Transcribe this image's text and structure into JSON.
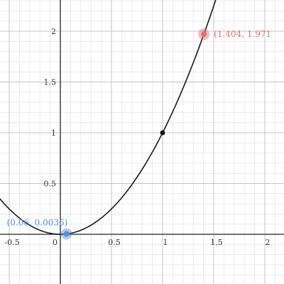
{
  "chart_data": {
    "type": "line",
    "title": "",
    "xlabel": "",
    "ylabel": "",
    "xlim": [
      -0.6,
      2.19
    ],
    "ylim": [
      -0.5,
      2.3
    ],
    "grid": true,
    "x_ticks": [
      -0.5,
      0,
      0.5,
      1,
      1.5,
      2
    ],
    "y_ticks": [
      0.5,
      1,
      1.5,
      2
    ],
    "x_tick_labels": [
      "-0.5",
      "0",
      "0.5",
      "1",
      "1.5",
      "2"
    ],
    "y_tick_labels": [
      "0.5",
      "1",
      "1.5",
      "2"
    ],
    "series": [
      {
        "color": "#1a1a1a",
        "function": "y = x^2"
      }
    ],
    "points": [
      {
        "x": 0.06,
        "y": 0.0036,
        "color": "#5a8fd6",
        "style": "highlight"
      },
      {
        "x": 1,
        "y": 1,
        "color": "#111111",
        "style": "solid"
      },
      {
        "x": 1.404,
        "y": 1.971,
        "color": "#e07070",
        "style": "highlight"
      }
    ],
    "annotations": [
      {
        "text": "(0.06, 0.0036)",
        "x": 0.06,
        "y": 0.0036,
        "color": "#5a8fd6",
        "anchor": "above-left"
      },
      {
        "text": "(1.404, 1.971",
        "x": 1.404,
        "y": 1.971,
        "color": "#e07070",
        "anchor": "right"
      }
    ]
  }
}
